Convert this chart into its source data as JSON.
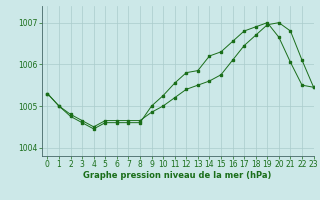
{
  "xlabel": "Graphe pression niveau de la mer (hPa)",
  "ylim": [
    1003.8,
    1007.4
  ],
  "xlim": [
    -0.5,
    23
  ],
  "yticks": [
    1004,
    1005,
    1006,
    1007
  ],
  "xticks": [
    0,
    1,
    2,
    3,
    4,
    5,
    6,
    7,
    8,
    9,
    10,
    11,
    12,
    13,
    14,
    15,
    16,
    17,
    18,
    19,
    20,
    21,
    22,
    23
  ],
  "bg_color": "#cce8e8",
  "grid_color": "#aacccc",
  "line_color": "#1a6e1a",
  "series1": [
    [
      0,
      1005.3
    ],
    [
      1,
      1005.0
    ],
    [
      2,
      1004.8
    ],
    [
      3,
      1004.65
    ],
    [
      4,
      1004.5
    ],
    [
      5,
      1004.65
    ],
    [
      6,
      1004.65
    ],
    [
      7,
      1004.65
    ],
    [
      8,
      1004.65
    ],
    [
      9,
      1004.85
    ],
    [
      10,
      1005.0
    ],
    [
      11,
      1005.2
    ],
    [
      12,
      1005.4
    ],
    [
      13,
      1005.5
    ],
    [
      14,
      1005.6
    ],
    [
      15,
      1005.75
    ],
    [
      16,
      1006.1
    ],
    [
      17,
      1006.45
    ],
    [
      18,
      1006.7
    ],
    [
      19,
      1006.95
    ],
    [
      20,
      1007.0
    ],
    [
      21,
      1006.8
    ],
    [
      22,
      1006.1
    ],
    [
      23,
      1005.45
    ]
  ],
  "series2": [
    [
      0,
      1005.3
    ],
    [
      1,
      1005.0
    ],
    [
      2,
      1004.75
    ],
    [
      3,
      1004.6
    ],
    [
      4,
      1004.45
    ],
    [
      5,
      1004.6
    ],
    [
      6,
      1004.6
    ],
    [
      7,
      1004.6
    ],
    [
      8,
      1004.6
    ],
    [
      9,
      1005.0
    ],
    [
      10,
      1005.25
    ],
    [
      11,
      1005.55
    ],
    [
      12,
      1005.8
    ],
    [
      13,
      1005.85
    ],
    [
      14,
      1006.2
    ],
    [
      15,
      1006.3
    ],
    [
      16,
      1006.55
    ],
    [
      17,
      1006.8
    ],
    [
      18,
      1006.9
    ],
    [
      19,
      1007.0
    ],
    [
      20,
      1006.65
    ],
    [
      21,
      1006.05
    ],
    [
      22,
      1005.5
    ],
    [
      23,
      1005.45
    ]
  ],
  "tick_fontsize": 5.5,
  "xlabel_fontsize": 6.0
}
